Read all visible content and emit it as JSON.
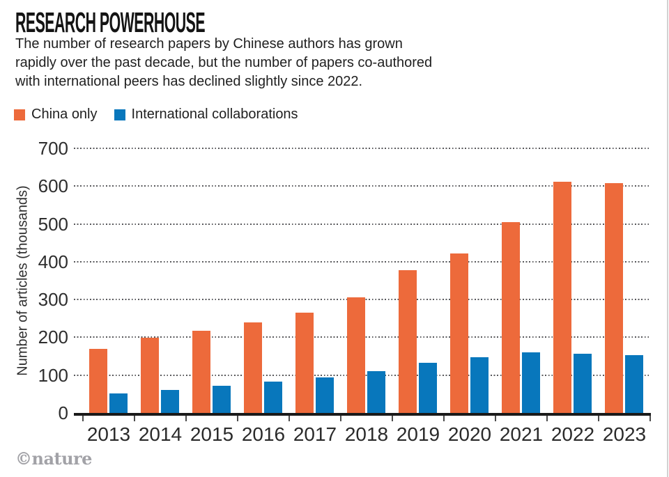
{
  "header": {
    "title": "RESEARCH POWERHOUSE",
    "subtitle_lines": [
      "The number of research papers by Chinese authors has grown",
      "rapidly over the past decade, but the number of papers co-authored",
      "with international peers has declined slightly since 2022."
    ]
  },
  "legend": [
    {
      "label": "China only",
      "color": "#ED6A3B"
    },
    {
      "label": "International collaborations",
      "color": "#0877BC"
    }
  ],
  "chart_data": {
    "type": "bar",
    "title": "RESEARCH POWERHOUSE",
    "categories": [
      "2013",
      "2014",
      "2015",
      "2016",
      "2017",
      "2018",
      "2019",
      "2020",
      "2021",
      "2022",
      "2023"
    ],
    "series": [
      {
        "name": "China only",
        "color": "#ED6A3B",
        "values": [
          170,
          198,
          218,
          240,
          265,
          305,
          377,
          422,
          505,
          612,
          608
        ]
      },
      {
        "name": "International collaborations",
        "color": "#0877BC",
        "values": [
          52,
          61,
          71,
          83,
          94,
          110,
          132,
          148,
          160,
          157,
          153
        ]
      }
    ],
    "ylabel": "Number of articles (thousands)",
    "yticks": [
      0,
      100,
      200,
      300,
      400,
      500,
      600,
      700
    ],
    "ylim": [
      0,
      700
    ],
    "grid": "horizontal-dotted",
    "legend_position": "top-left"
  },
  "footer": {
    "credit": "©nature"
  }
}
